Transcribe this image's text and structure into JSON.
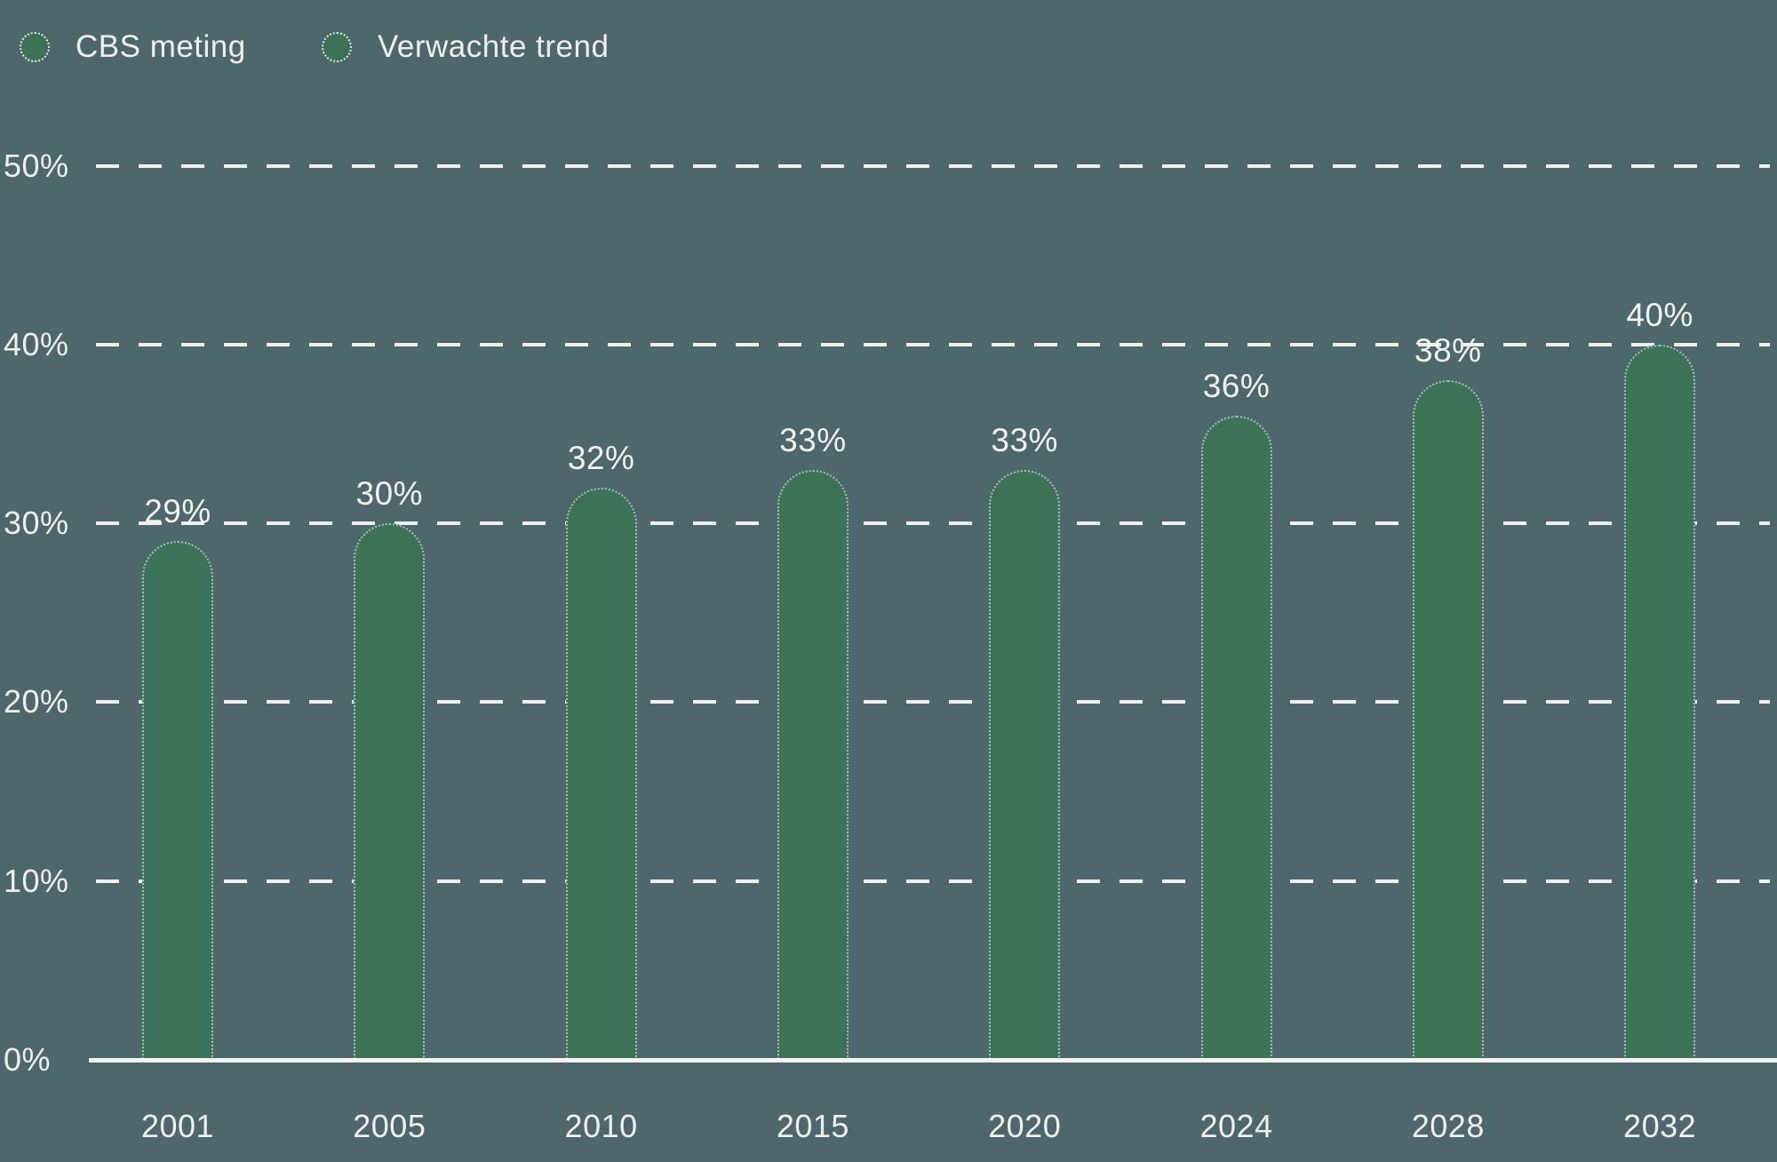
{
  "legend": {
    "items": [
      {
        "label": "CBS meting"
      },
      {
        "label": "Verwachte trend"
      }
    ]
  },
  "chart_data": {
    "type": "bar",
    "title": "",
    "xlabel": "",
    "ylabel": "",
    "categories": [
      "2001",
      "2005",
      "2010",
      "2015",
      "2020",
      "2024",
      "2028",
      "2032"
    ],
    "values": [
      29,
      30,
      32,
      33,
      33,
      36,
      38,
      40
    ],
    "value_labels": [
      "29%",
      "30%",
      "32%",
      "33%",
      "33%",
      "36%",
      "38%",
      "40%"
    ],
    "unit": "%",
    "ylim": [
      0,
      50
    ],
    "y_ticks": [
      "0%",
      "10%",
      "20%",
      "30%",
      "40%",
      "50%"
    ],
    "grid": "horizontal-dashed",
    "legend": [
      "CBS meting",
      "Verwachte trend"
    ],
    "legend_position": "top-left",
    "bar_color": "#3d7259",
    "background_color": "#4d676c",
    "text_color": "#eef0ed",
    "gridline_color": "#f3f5f1"
  }
}
